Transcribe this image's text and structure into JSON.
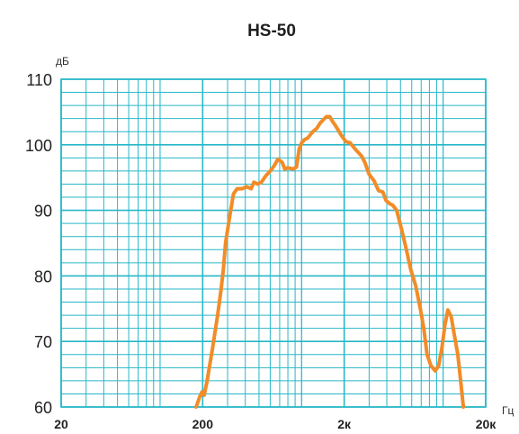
{
  "chart_data": {
    "type": "line",
    "title": "HS-50",
    "ylabel": "дБ",
    "xlabel": "Гц",
    "x_scale": "log",
    "xlim": [
      20,
      20000
    ],
    "ylim": [
      60,
      110
    ],
    "x_ticks": [
      {
        "value": 20,
        "label": "20"
      },
      {
        "value": 200,
        "label": "200"
      },
      {
        "value": 2000,
        "label": "2к"
      },
      {
        "value": 20000,
        "label": "20к"
      }
    ],
    "y_ticks": [
      {
        "value": 60,
        "label": "60"
      },
      {
        "value": 70,
        "label": "70"
      },
      {
        "value": 80,
        "label": "80"
      },
      {
        "value": 90,
        "label": "90"
      },
      {
        "value": 100,
        "label": "100"
      },
      {
        "value": 110,
        "label": "110"
      }
    ],
    "grid": true,
    "series": [
      {
        "color": "#F28C28",
        "points": [
          [
            180,
            60.0
          ],
          [
            190,
            61.5
          ],
          [
            198,
            62.3
          ],
          [
            205,
            61.8
          ],
          [
            215,
            64
          ],
          [
            235,
            69
          ],
          [
            255,
            74
          ],
          [
            270,
            78
          ],
          [
            280,
            81
          ],
          [
            290,
            85
          ],
          [
            310,
            89
          ],
          [
            330,
            92.5
          ],
          [
            350,
            93.3
          ],
          [
            380,
            93.3
          ],
          [
            410,
            93.6
          ],
          [
            440,
            93.3
          ],
          [
            460,
            94.3
          ],
          [
            490,
            94.0
          ],
          [
            520,
            94.3
          ],
          [
            560,
            95.3
          ],
          [
            600,
            96.0
          ],
          [
            640,
            96.8
          ],
          [
            680,
            97.8
          ],
          [
            710,
            97.5
          ],
          [
            730,
            97.3
          ],
          [
            760,
            96.3
          ],
          [
            800,
            96.5
          ],
          [
            870,
            96.3
          ],
          [
            920,
            96.6
          ],
          [
            960,
            99.3
          ],
          [
            1000,
            100.3
          ],
          [
            1050,
            100.8
          ],
          [
            1100,
            101.0
          ],
          [
            1150,
            101.5
          ],
          [
            1200,
            102.0
          ],
          [
            1280,
            102.5
          ],
          [
            1350,
            103.3
          ],
          [
            1420,
            103.8
          ],
          [
            1500,
            104.3
          ],
          [
            1580,
            104.3
          ],
          [
            1650,
            103.6
          ],
          [
            1750,
            102.8
          ],
          [
            1900,
            101.5
          ],
          [
            2050,
            100.5
          ],
          [
            2200,
            100.3
          ],
          [
            2400,
            99.3
          ],
          [
            2650,
            98.3
          ],
          [
            2800,
            97.3
          ],
          [
            3000,
            95.5
          ],
          [
            3250,
            94.5
          ],
          [
            3500,
            93.0
          ],
          [
            3750,
            92.8
          ],
          [
            3950,
            91.5
          ],
          [
            4200,
            91.0
          ],
          [
            4400,
            90.8
          ],
          [
            4700,
            90.0
          ],
          [
            5100,
            87.0
          ],
          [
            5500,
            84.0
          ],
          [
            5900,
            81.0
          ],
          [
            6400,
            78.5
          ],
          [
            6900,
            75.0
          ],
          [
            7300,
            72.0
          ],
          [
            7700,
            68.0
          ],
          [
            8200,
            66.3
          ],
          [
            8800,
            65.5
          ],
          [
            9300,
            66.3
          ],
          [
            9800,
            69.0
          ],
          [
            10300,
            72.5
          ],
          [
            10800,
            74.8
          ],
          [
            11400,
            73.8
          ],
          [
            12000,
            71.0
          ],
          [
            12700,
            68.0
          ],
          [
            13300,
            64.0
          ],
          [
            13900,
            60.0
          ]
        ]
      }
    ]
  }
}
